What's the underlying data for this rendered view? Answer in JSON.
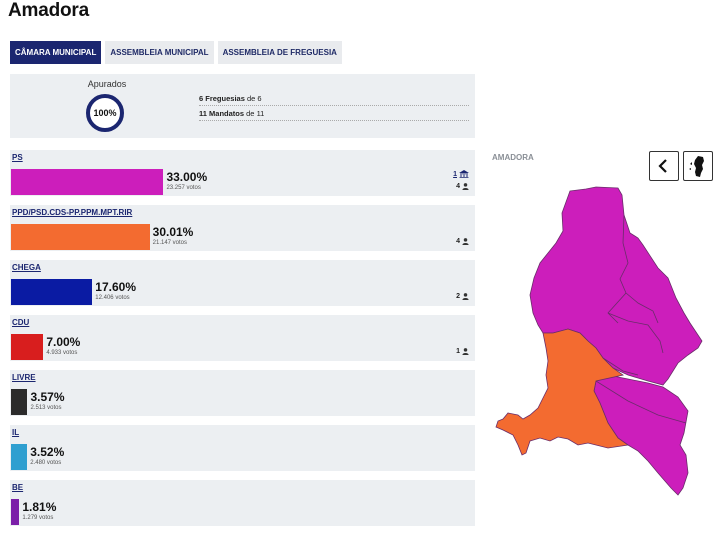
{
  "title": "Amadora",
  "tabs": [
    {
      "label": "CÂMARA MUNICIPAL",
      "active": true
    },
    {
      "label": "ASSEMBLEIA MUNICIPAL",
      "active": false
    },
    {
      "label": "ASSEMBLEIA DE FREGUESIA",
      "active": false
    }
  ],
  "summary": {
    "apurados_label": "Apurados",
    "apurados_value": "100%",
    "freguesias_count": "6",
    "freguesias_label": "Freguesias",
    "freguesias_of": "de 6",
    "mandatos_count": "11",
    "mandatos_label": "Mandatos",
    "mandatos_of": "de 11"
  },
  "parties": [
    {
      "name": "PS",
      "pct": "33.00%",
      "pct_value": 33.0,
      "votes": "23.257 votos",
      "seats": "4",
      "president_seat": "1",
      "color": "#cc1ebb"
    },
    {
      "name": "PPD/PSD.CDS-PP.PPM.MPT.RIR",
      "pct": "30.01%",
      "pct_value": 30.01,
      "votes": "21.147 votos",
      "seats": "4",
      "color": "#f36b30"
    },
    {
      "name": "CHEGA",
      "pct": "17.60%",
      "pct_value": 17.6,
      "votes": "12.406 votos",
      "seats": "2",
      "color": "#0a1ba3"
    },
    {
      "name": "CDU",
      "pct": "7.00%",
      "pct_value": 7.0,
      "votes": "4.933 votos",
      "seats": "1",
      "color": "#d81e1e"
    },
    {
      "name": "LIVRE",
      "pct": "3.57%",
      "pct_value": 3.57,
      "votes": "2.513 votos",
      "seats": "",
      "color": "#2b2b2b"
    },
    {
      "name": "IL",
      "pct": "3.52%",
      "pct_value": 3.52,
      "votes": "2.480 votos",
      "seats": "",
      "color": "#2f9fd0"
    },
    {
      "name": "BE",
      "pct": "1.81%",
      "pct_value": 1.81,
      "votes": "1.279 votos",
      "seats": "",
      "color": "#7b1fa8"
    }
  ],
  "map": {
    "label": "AMADORA",
    "back_icon": "chevron-left-icon",
    "portugal_icon": "portugal-map-icon",
    "colors": {
      "ps": "#cc1ebb",
      "psd": "#f36b30",
      "border": "#6a2d6a"
    }
  }
}
